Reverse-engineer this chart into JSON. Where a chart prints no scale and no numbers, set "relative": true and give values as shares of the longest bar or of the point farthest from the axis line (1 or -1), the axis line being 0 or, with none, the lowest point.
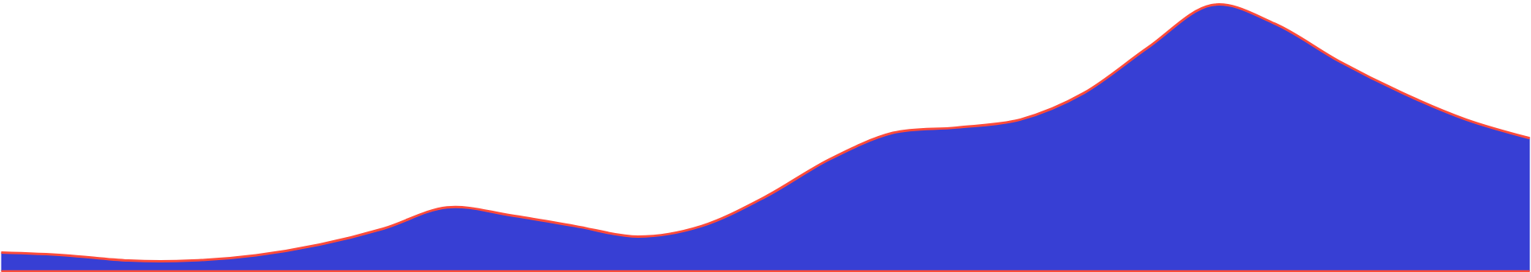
{
  "chart_data": {
    "type": "area",
    "relative": true,
    "categories": [
      null,
      null,
      null,
      null,
      null,
      null,
      null,
      null,
      null,
      null,
      null,
      null,
      null,
      null,
      null,
      null,
      null,
      null,
      null,
      null,
      null,
      null,
      null,
      null,
      null
    ],
    "series": [
      {
        "color": "#373fd4",
        "values": [
          0.07,
          0.06,
          0.04,
          0.04,
          0.06,
          0.1,
          0.16,
          0.24,
          0.21,
          0.17,
          0.13,
          0.17,
          0.28,
          0.42,
          0.52,
          0.54,
          0.57,
          0.67,
          0.84,
          1,
          0.93,
          0.79,
          0.67,
          0.57,
          0.5
        ]
      },
      {
        "type": "line",
        "color": "#ff4b3a",
        "values": [
          0.07,
          0.06,
          0.04,
          0.04,
          0.06,
          0.1,
          0.16,
          0.24,
          0.21,
          0.17,
          0.13,
          0.17,
          0.28,
          0.42,
          0.52,
          0.54,
          0.57,
          0.67,
          0.84,
          1,
          0.93,
          0.79,
          0.67,
          0.57,
          0.5
        ]
      }
    ]
  }
}
